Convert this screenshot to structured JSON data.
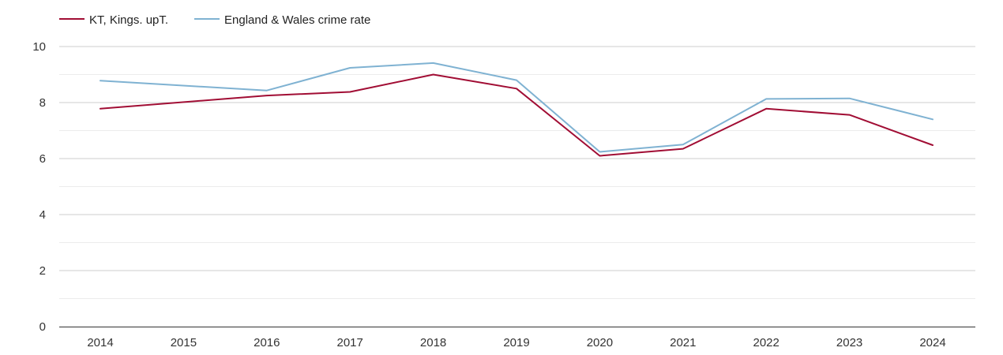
{
  "chart_data": {
    "type": "line",
    "x": [
      "2014",
      "2015",
      "2016",
      "2017",
      "2018",
      "2019",
      "2020",
      "2021",
      "2022",
      "2023",
      "2024"
    ],
    "ylim": [
      0,
      10
    ],
    "yticks": [
      0,
      2,
      4,
      6,
      8,
      10
    ],
    "grid": true,
    "legend_position": "top-left",
    "series": [
      {
        "name": "KT, Kings. upT.",
        "color": "#a10d34",
        "values": [
          7.78,
          null,
          8.25,
          8.38,
          9.0,
          8.5,
          6.1,
          6.35,
          7.78,
          7.56,
          6.48
        ]
      },
      {
        "name": "England & Wales crime rate",
        "color": "#7fb2d2",
        "values": [
          8.78,
          null,
          8.43,
          9.24,
          9.41,
          8.8,
          6.24,
          6.5,
          8.13,
          8.15,
          7.4
        ]
      }
    ]
  }
}
